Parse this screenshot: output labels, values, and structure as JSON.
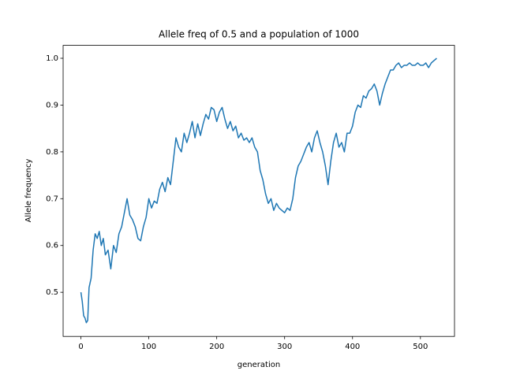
{
  "chart_data": {
    "type": "line",
    "title": "Allele freq of 0.5 and a population of 1000",
    "x_label": "generation",
    "y_label": "Allele frequency",
    "x": [
      0,
      2,
      4,
      6,
      8,
      10,
      12,
      15,
      18,
      21,
      24,
      27,
      30,
      33,
      36,
      40,
      44,
      48,
      52,
      56,
      60,
      64,
      68,
      72,
      76,
      80,
      84,
      88,
      92,
      96,
      100,
      104,
      108,
      112,
      116,
      120,
      124,
      128,
      132,
      136,
      140,
      144,
      148,
      152,
      156,
      160,
      164,
      168,
      172,
      176,
      180,
      184,
      188,
      192,
      196,
      200,
      204,
      208,
      212,
      216,
      220,
      224,
      228,
      232,
      236,
      240,
      244,
      248,
      252,
      256,
      260,
      264,
      268,
      272,
      276,
      280,
      284,
      288,
      292,
      296,
      300,
      304,
      308,
      312,
      316,
      320,
      324,
      328,
      332,
      336,
      340,
      344,
      348,
      352,
      356,
      360,
      364,
      368,
      372,
      376,
      380,
      384,
      388,
      392,
      396,
      400,
      404,
      408,
      412,
      416,
      420,
      424,
      428,
      432,
      436,
      440,
      444,
      448,
      452,
      456,
      460,
      464,
      468,
      472,
      476,
      480,
      484,
      488,
      492,
      496,
      500,
      504,
      508,
      512,
      516,
      520,
      524
    ],
    "series": [
      {
        "color": "#1f77b4",
        "values": [
          0.5,
          0.48,
          0.45,
          0.445,
          0.435,
          0.44,
          0.51,
          0.53,
          0.59,
          0.625,
          0.615,
          0.63,
          0.6,
          0.615,
          0.58,
          0.59,
          0.55,
          0.6,
          0.585,
          0.625,
          0.64,
          0.67,
          0.7,
          0.665,
          0.655,
          0.64,
          0.615,
          0.61,
          0.64,
          0.66,
          0.7,
          0.68,
          0.695,
          0.69,
          0.72,
          0.735,
          0.715,
          0.745,
          0.73,
          0.78,
          0.83,
          0.81,
          0.8,
          0.84,
          0.82,
          0.84,
          0.865,
          0.83,
          0.86,
          0.835,
          0.86,
          0.88,
          0.87,
          0.895,
          0.89,
          0.865,
          0.885,
          0.895,
          0.87,
          0.85,
          0.865,
          0.845,
          0.855,
          0.83,
          0.84,
          0.825,
          0.83,
          0.82,
          0.83,
          0.81,
          0.8,
          0.76,
          0.74,
          0.71,
          0.69,
          0.7,
          0.675,
          0.69,
          0.68,
          0.675,
          0.67,
          0.68,
          0.675,
          0.7,
          0.745,
          0.77,
          0.78,
          0.795,
          0.81,
          0.82,
          0.8,
          0.83,
          0.845,
          0.82,
          0.8,
          0.77,
          0.73,
          0.78,
          0.82,
          0.84,
          0.81,
          0.82,
          0.8,
          0.84,
          0.84,
          0.855,
          0.885,
          0.9,
          0.895,
          0.92,
          0.915,
          0.93,
          0.935,
          0.945,
          0.93,
          0.9,
          0.925,
          0.945,
          0.96,
          0.975,
          0.975,
          0.985,
          0.99,
          0.98,
          0.985,
          0.985,
          0.99,
          0.985,
          0.985,
          0.99,
          0.985,
          0.985,
          0.99,
          0.98,
          0.99,
          0.995,
          1.0
        ]
      }
    ],
    "xlim": [
      -26.2,
      550.2
    ],
    "xticks": [
      0,
      100,
      200,
      300,
      400,
      500
    ],
    "ylim": [
      0.4057,
      1.0276
    ],
    "yticks": [
      0.5,
      0.6,
      0.7,
      0.8,
      0.9,
      {
        "value": 1,
        "label": "1.0"
      }
    ]
  }
}
